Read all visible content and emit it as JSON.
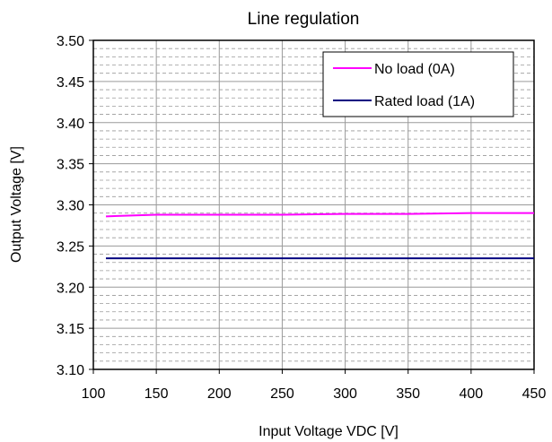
{
  "chart_data": {
    "type": "line",
    "title": "Line regulation",
    "xlabel": "Input Voltage VDC [V]",
    "ylabel": "Output Voltage [V]",
    "xlim": [
      100,
      450
    ],
    "ylim": [
      3.1,
      3.5
    ],
    "xticks": [
      100,
      150,
      200,
      250,
      300,
      350,
      400,
      450
    ],
    "yticks": [
      3.1,
      3.15,
      3.2,
      3.25,
      3.3,
      3.35,
      3.4,
      3.45,
      3.5
    ],
    "xtick_labels": [
      "100",
      "150",
      "200",
      "250",
      "300",
      "350",
      "400",
      "450"
    ],
    "ytick_labels": [
      "3.10",
      "3.15",
      "3.20",
      "3.25",
      "3.30",
      "3.35",
      "3.40",
      "3.45",
      "3.50"
    ],
    "grid": true,
    "legend_position": "top-right",
    "series": [
      {
        "name": "No load (0A)",
        "color": "#ff00ff",
        "x": [
          110,
          150,
          200,
          250,
          300,
          350,
          400,
          450
        ],
        "y": [
          3.286,
          3.288,
          3.288,
          3.288,
          3.289,
          3.289,
          3.29,
          3.29
        ]
      },
      {
        "name": "Rated load (1A)",
        "color": "#000080",
        "x": [
          110,
          150,
          200,
          250,
          300,
          350,
          400,
          450
        ],
        "y": [
          3.235,
          3.235,
          3.235,
          3.235,
          3.235,
          3.235,
          3.235,
          3.235
        ]
      }
    ]
  }
}
